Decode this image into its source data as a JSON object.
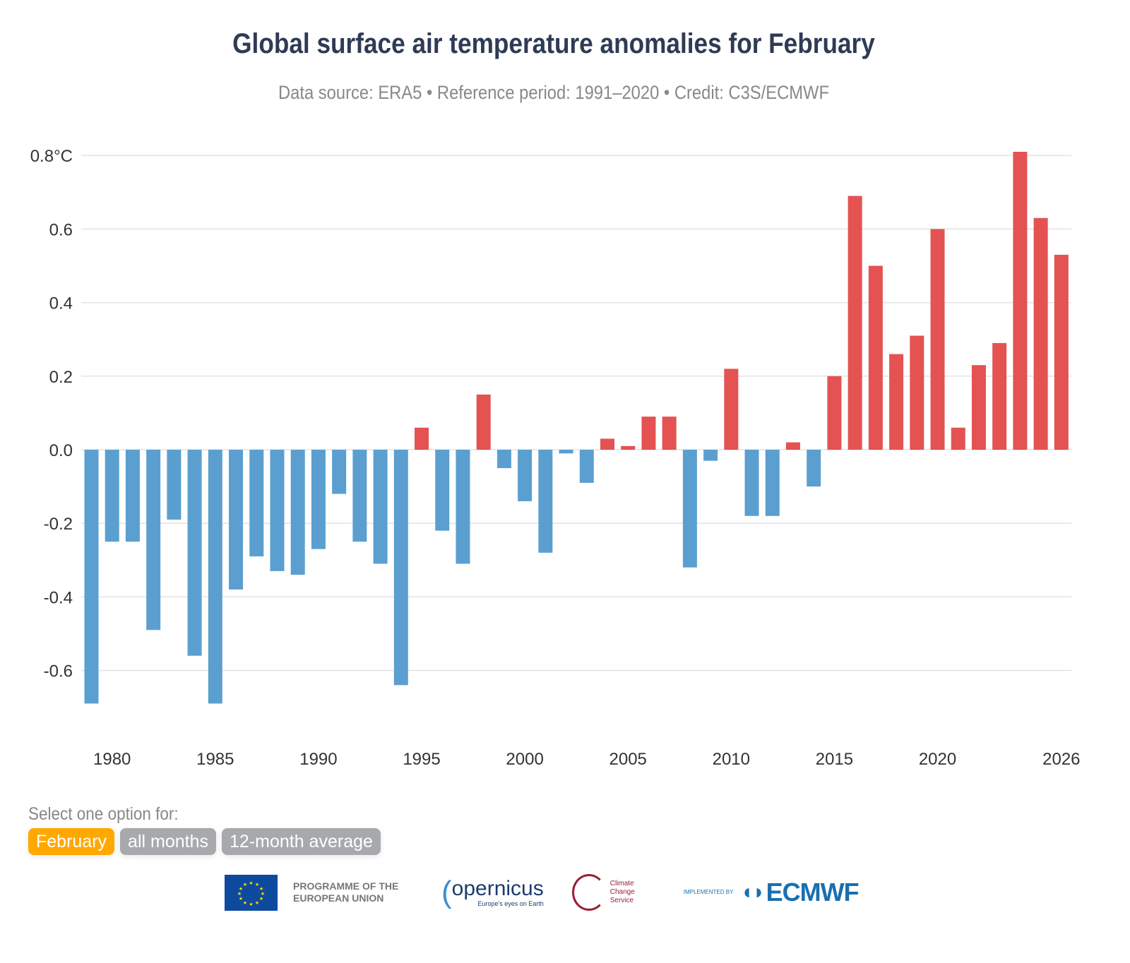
{
  "header": {
    "title": "Global surface air temperature anomalies for February",
    "subtitle": "Data source: ERA5 • Reference period: 1991–2020 • Credit: C3S/ECMWF"
  },
  "chart_data": {
    "type": "bar",
    "title": "Global surface air temperature anomalies for February",
    "x": [
      1979,
      1980,
      1981,
      1982,
      1983,
      1984,
      1985,
      1986,
      1987,
      1988,
      1989,
      1990,
      1991,
      1992,
      1993,
      1994,
      1995,
      1996,
      1997,
      1998,
      1999,
      2000,
      2001,
      2002,
      2003,
      2004,
      2005,
      2006,
      2007,
      2008,
      2009,
      2010,
      2011,
      2012,
      2013,
      2014,
      2015,
      2016,
      2017,
      2018,
      2019,
      2020,
      2021,
      2022,
      2023,
      2024,
      2025,
      2026
    ],
    "values": [
      -0.69,
      -0.25,
      -0.25,
      -0.49,
      -0.19,
      -0.56,
      -0.69,
      -0.38,
      -0.29,
      -0.33,
      -0.34,
      -0.27,
      -0.12,
      -0.25,
      -0.31,
      -0.64,
      0.06,
      -0.22,
      -0.31,
      0.15,
      -0.05,
      -0.14,
      -0.28,
      -0.01,
      -0.09,
      0.03,
      0.01,
      0.09,
      0.09,
      -0.32,
      -0.03,
      0.22,
      -0.18,
      -0.18,
      0.02,
      -0.1,
      0.2,
      0.69,
      0.5,
      0.26,
      0.31,
      0.6,
      0.06,
      0.23,
      0.29,
      0.81,
      0.63,
      0.53
    ],
    "ylim": [
      -0.75,
      0.8
    ],
    "yticks": [
      "0.8°C",
      "0.6",
      "0.4",
      "0.2",
      "0.0",
      "-0.2",
      "-0.4",
      "-0.6"
    ],
    "ytick_values": [
      0.8,
      0.6,
      0.4,
      0.2,
      0,
      -0.2,
      -0.4,
      -0.6
    ],
    "xticks": [
      "1980",
      "1985",
      "1990",
      "1995",
      "2000",
      "2005",
      "2010",
      "2015",
      "2020",
      "2026"
    ],
    "xtick_values": [
      1980,
      1985,
      1990,
      1995,
      2000,
      2005,
      2010,
      2015,
      2020,
      2026
    ],
    "grid": true,
    "colors": {
      "positive": "#e45252",
      "negative": "#5b9fd0"
    }
  },
  "controls": {
    "label": "Select one option for:",
    "options": [
      {
        "label": "February",
        "active": true
      },
      {
        "label": "all months",
        "active": false
      },
      {
        "label": "12-month average",
        "active": false
      }
    ],
    "active_color": "#ffa800"
  },
  "footer": {
    "eu": "PROGRAMME OF THE EUROPEAN UNION",
    "copernicus": "opernicus",
    "copernicus_tagline": "Europe's eyes on Earth",
    "c3s": "Climate Change Service",
    "implemented_by": "IMPLEMENTED BY",
    "ecmwf": "ECMWF"
  }
}
